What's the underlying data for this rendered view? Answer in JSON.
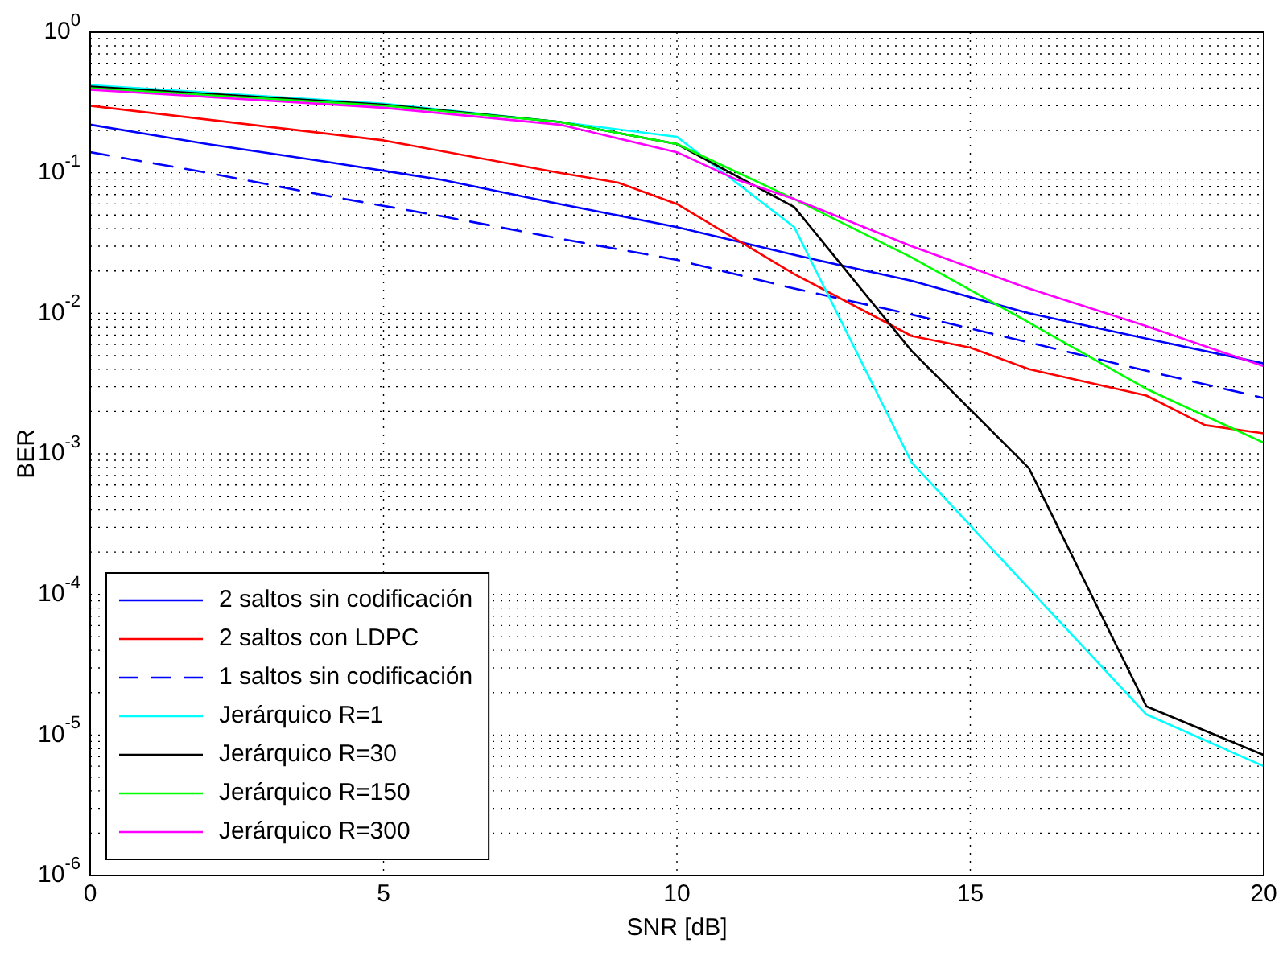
{
  "chart_data": {
    "type": "line",
    "xlabel": "SNR [dB]",
    "ylabel": "BER",
    "log": "y",
    "grid": true,
    "legend": "bottom left",
    "marker": "none",
    "line_style": "solid",
    "xlim": [
      0,
      20
    ],
    "xticks": [
      0,
      5,
      10,
      15,
      20
    ],
    "ylim": [
      1e-06,
      1
    ],
    "yticks": [
      {
        "value": 1,
        "label": "10$^{0}$"
      },
      {
        "value": 0.1,
        "label": "10$^{-1}$"
      },
      {
        "value": 0.01,
        "label": "10$^{-2}$"
      },
      {
        "value": 0.001,
        "label": "10$^{-3}$"
      },
      {
        "value": 0.0001,
        "label": "10$^{-4}$"
      },
      {
        "value": 1e-05,
        "label": "10$^{-5}$"
      },
      {
        "value": 1e-06,
        "label": "10$^{-6}$"
      }
    ],
    "x": [
      0,
      2,
      4,
      6,
      8,
      10,
      12,
      14,
      16,
      18,
      20
    ],
    "series": [
      {
        "name": "2 saltos sin codificación",
        "color": "#0000ff",
        "values": [
          0.22,
          0.16,
          0.12,
          0.089,
          0.06,
          0.041,
          0.026,
          0.017,
          0.01,
          0.0066,
          0.0044
        ]
      },
      {
        "name": "2 saltos con LDPC",
        "color": "#ff0000",
        "x": [
          0,
          5,
          8,
          9,
          10,
          12,
          14,
          15,
          16,
          18,
          19,
          20
        ],
        "values": [
          0.3,
          0.17,
          0.1,
          0.085,
          0.06,
          0.019,
          0.0069,
          0.0057,
          0.004,
          0.0026,
          0.0016,
          0.0014
        ]
      },
      {
        "name": "1 saltos sin codificación",
        "color": "#0000ff",
        "line_style": "dashed",
        "values": [
          0.14,
          0.1,
          0.069,
          0.049,
          0.034,
          0.024,
          0.015,
          0.0098,
          0.0062,
          0.0039,
          0.0025
        ]
      },
      {
        "name": "Jerárquico R=1",
        "color": "#00ffff",
        "x": [
          0,
          5,
          8,
          10,
          12,
          14,
          16,
          18,
          20
        ],
        "values": [
          0.42,
          0.31,
          0.23,
          0.18,
          0.041,
          0.00087,
          0.00011,
          1.4e-05,
          6e-06
        ]
      },
      {
        "name": "Jerárquico R=30",
        "color": "#000000",
        "x": [
          0,
          5,
          8,
          10,
          12,
          14,
          16,
          18,
          20
        ],
        "values": [
          0.41,
          0.305,
          0.23,
          0.16,
          0.057,
          0.0054,
          0.00079,
          1.6e-05,
          7.2e-06
        ]
      },
      {
        "name": "Jerárquico R=150",
        "color": "#00ff00",
        "x": [
          0,
          5,
          8,
          10,
          12,
          14,
          16,
          18,
          20
        ],
        "values": [
          0.4,
          0.3,
          0.23,
          0.16,
          0.065,
          0.025,
          0.0086,
          0.0029,
          0.0012
        ]
      },
      {
        "name": "Jerárquico R=300",
        "color": "#ff00ff",
        "x": [
          0,
          5,
          8,
          10,
          11,
          12,
          14,
          16,
          18,
          20
        ],
        "values": [
          0.39,
          0.29,
          0.22,
          0.14,
          0.09,
          0.065,
          0.03,
          0.015,
          0.0081,
          0.0042
        ]
      }
    ]
  }
}
